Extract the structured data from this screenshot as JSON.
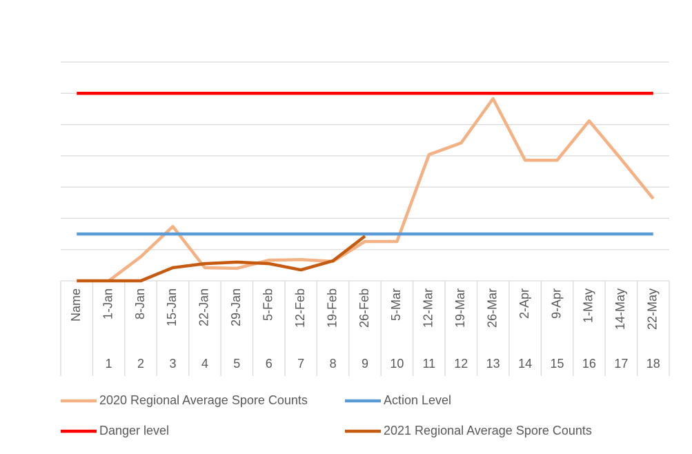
{
  "chart_data": {
    "type": "line",
    "categories": [
      "Name",
      "1-Jan",
      "8-Jan",
      "15-Jan",
      "22-Jan",
      "29-Jan",
      "5-Feb",
      "12-Feb",
      "19-Feb",
      "26-Feb",
      "5-Mar",
      "12-Mar",
      "19-Mar",
      "26-Mar",
      "2-Apr",
      "9-Apr",
      "1-May",
      "14-May",
      "22-May"
    ],
    "weeks": [
      null,
      1,
      2,
      3,
      4,
      5,
      6,
      7,
      8,
      9,
      10,
      11,
      12,
      13,
      14,
      15,
      16,
      17,
      18
    ],
    "series": [
      {
        "name": "2020 Regional Average Spore Counts",
        "color": "#f4b183",
        "values": [
          null,
          0,
          0.77,
          1.74,
          0.42,
          0.4,
          0.66,
          0.68,
          0.62,
          1.26,
          1.26,
          4.04,
          4.41,
          5.83,
          3.86,
          3.86,
          5.12,
          3.89,
          2.63
        ]
      },
      {
        "name": "Action Level",
        "color": "#5b9bd5",
        "values": [
          1.5,
          1.5,
          1.5,
          1.5,
          1.5,
          1.5,
          1.5,
          1.5,
          1.5,
          1.5,
          1.5,
          1.5,
          1.5,
          1.5,
          1.5,
          1.5,
          1.5,
          1.5,
          1.5
        ]
      },
      {
        "name": "Danger level",
        "color": "#ff0000",
        "values": [
          6,
          6,
          6,
          6,
          6,
          6,
          6,
          6,
          6,
          6,
          6,
          6,
          6,
          6,
          6,
          6,
          6,
          6,
          6
        ]
      },
      {
        "name": "2021 Regional Average Spore Counts",
        "color": "#c55a11",
        "values": [
          0,
          0,
          0,
          0.42,
          0.55,
          0.6,
          0.55,
          0.35,
          0.64,
          1.43,
          null,
          null,
          null,
          null,
          null,
          null,
          null,
          null,
          null
        ]
      }
    ],
    "ylim": [
      0,
      7
    ],
    "yticks": [
      0,
      1,
      2,
      3,
      4,
      5,
      6,
      7
    ],
    "grid": true
  }
}
